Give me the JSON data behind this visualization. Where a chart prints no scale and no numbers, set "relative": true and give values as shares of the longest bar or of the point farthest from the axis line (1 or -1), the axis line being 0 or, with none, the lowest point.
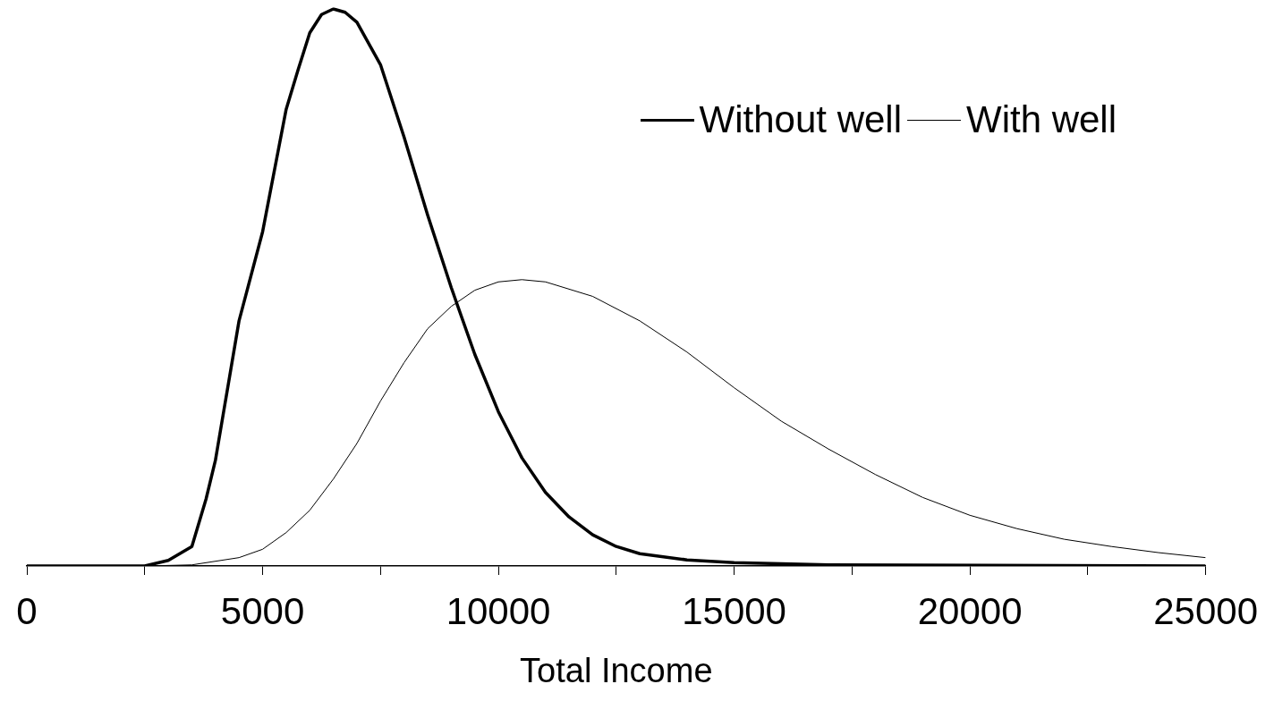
{
  "chart_data": {
    "type": "line",
    "xlabel": "Total Income",
    "relative": true,
    "xlim": [
      0,
      25000
    ],
    "xticks": [
      0,
      {
        "value": 2500,
        "label": null
      },
      5000,
      {
        "value": 7500,
        "label": null
      },
      10000,
      {
        "value": 12500,
        "label": null
      },
      15000,
      {
        "value": 17500,
        "label": null
      },
      20000,
      {
        "value": 22500,
        "label": null
      },
      25000
    ],
    "grid": false,
    "legend": "top right",
    "marker": "none",
    "series": [
      {
        "name": "Without well",
        "color": "#000000",
        "x": [
          0,
          2500,
          3000,
          3500,
          3800,
          4000,
          4200,
          4500,
          5000,
          5500,
          5750,
          6000,
          6250,
          6500,
          6750,
          7000,
          7500,
          8000,
          8500,
          9000,
          9500,
          10000,
          10500,
          11000,
          11500,
          12000,
          12500,
          13000,
          14000,
          15000,
          17000,
          25000
        ],
        "values": [
          0,
          0,
          0.01,
          0.035,
          0.12,
          0.19,
          0.29,
          0.44,
          0.6,
          0.82,
          0.89,
          0.957,
          0.99,
          1,
          0.994,
          0.976,
          0.9,
          0.77,
          0.63,
          0.5,
          0.38,
          0.277,
          0.194,
          0.132,
          0.088,
          0.056,
          0.035,
          0.022,
          0.011,
          0.006,
          0.002,
          0
        ]
      },
      {
        "name": "With well",
        "color": "#000000",
        "x": [
          0,
          2500,
          3500,
          4500,
          5000,
          5500,
          6000,
          6500,
          7000,
          7500,
          8000,
          8500,
          9000,
          9500,
          10000,
          10500,
          11000,
          12000,
          13000,
          14000,
          15000,
          16000,
          17000,
          18000,
          19000,
          20000,
          21000,
          22000,
          23000,
          24000,
          25000
        ],
        "values": [
          0,
          0,
          0.002,
          0.015,
          0.03,
          0.06,
          0.1,
          0.156,
          0.22,
          0.296,
          0.365,
          0.426,
          0.466,
          0.495,
          0.51,
          0.514,
          0.51,
          0.484,
          0.44,
          0.384,
          0.32,
          0.26,
          0.21,
          0.164,
          0.123,
          0.091,
          0.067,
          0.048,
          0.035,
          0.024,
          0.015
        ]
      }
    ]
  }
}
